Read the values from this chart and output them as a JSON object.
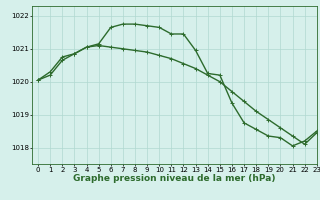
{
  "background_color": "#d6f0eb",
  "grid_color": "#b0d8d0",
  "line_color": "#2d6b2d",
  "xlabel": "Graphe pression niveau de la mer (hPa)",
  "ylim": [
    1017.5,
    1022.3
  ],
  "xlim": [
    -0.5,
    23
  ],
  "yticks": [
    1018,
    1019,
    1020,
    1021,
    1022
  ],
  "xticks": [
    0,
    1,
    2,
    3,
    4,
    5,
    6,
    7,
    8,
    9,
    10,
    11,
    12,
    13,
    14,
    15,
    16,
    17,
    18,
    19,
    20,
    21,
    22,
    23
  ],
  "series1_x": [
    0,
    1,
    2,
    3,
    4,
    5,
    6,
    7,
    8,
    9,
    10,
    11,
    12,
    13,
    14,
    15,
    16,
    17,
    18,
    19,
    20,
    21,
    22,
    23
  ],
  "series1_y": [
    1020.05,
    1020.3,
    1020.75,
    1020.85,
    1021.05,
    1021.15,
    1021.65,
    1021.75,
    1021.75,
    1021.7,
    1021.65,
    1021.45,
    1021.45,
    1020.95,
    1020.25,
    1020.2,
    1019.35,
    1018.75,
    1018.55,
    1018.35,
    1018.3,
    1018.05,
    1018.2,
    1018.5
  ],
  "series2_x": [
    0,
    1,
    2,
    3,
    4,
    5,
    6,
    7,
    8,
    9,
    10,
    11,
    12,
    13,
    14,
    15,
    16,
    17,
    18,
    19,
    20,
    21,
    22,
    23
  ],
  "series2_y": [
    1020.05,
    1020.2,
    1020.65,
    1020.85,
    1021.05,
    1021.1,
    1021.05,
    1021.0,
    1020.95,
    1020.9,
    1020.8,
    1020.7,
    1020.55,
    1020.4,
    1020.2,
    1020.0,
    1019.7,
    1019.4,
    1019.1,
    1018.85,
    1018.6,
    1018.35,
    1018.1,
    1018.45
  ],
  "marker_size": 2.5,
  "line_width": 1.0,
  "tick_fontsize": 5.0,
  "xlabel_fontsize": 6.5
}
